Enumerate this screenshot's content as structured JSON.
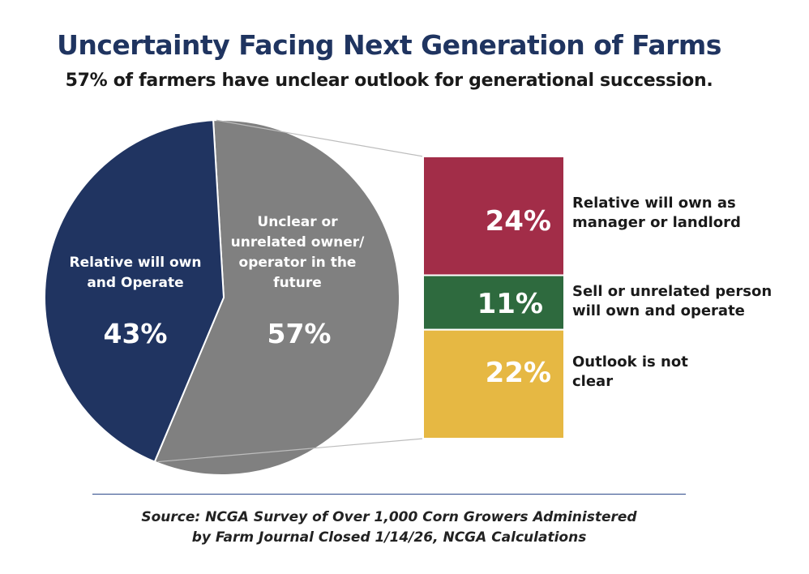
{
  "title": "Uncertainty Facing Next Generation of Farms",
  "subtitle": "57% of farmers have unclear outlook for generational succession.",
  "source": {
    "line1": "Source: NCGA Survey of Over 1,000 Corn Growers Administered",
    "line2": "by Farm Journal Closed 1/14/26, NCGA Calculations"
  },
  "chart_data": [
    {
      "type": "pie",
      "series": [
        {
          "name": "Relative will own and Operate",
          "value": 43,
          "label": "43%",
          "color": "#203461"
        },
        {
          "name": "Unclear or unrelated owner/ operator in the future",
          "value": 57,
          "label": "57%",
          "color": "#808080"
        }
      ]
    },
    {
      "type": "bar",
      "stacked": true,
      "breakdown_of": "Unclear or unrelated owner/ operator in the future",
      "series": [
        {
          "name": "Relative will own as manager or landlord",
          "value": 24,
          "label": "24%",
          "color": "#a22d48"
        },
        {
          "name": "Sell or unrelated person will own and operate",
          "value": 11,
          "label": "11%",
          "color": "#2e6a3e"
        },
        {
          "name": "Outlook is not clear",
          "value": 22,
          "label": "22%",
          "color": "#e6b843"
        }
      ]
    }
  ]
}
